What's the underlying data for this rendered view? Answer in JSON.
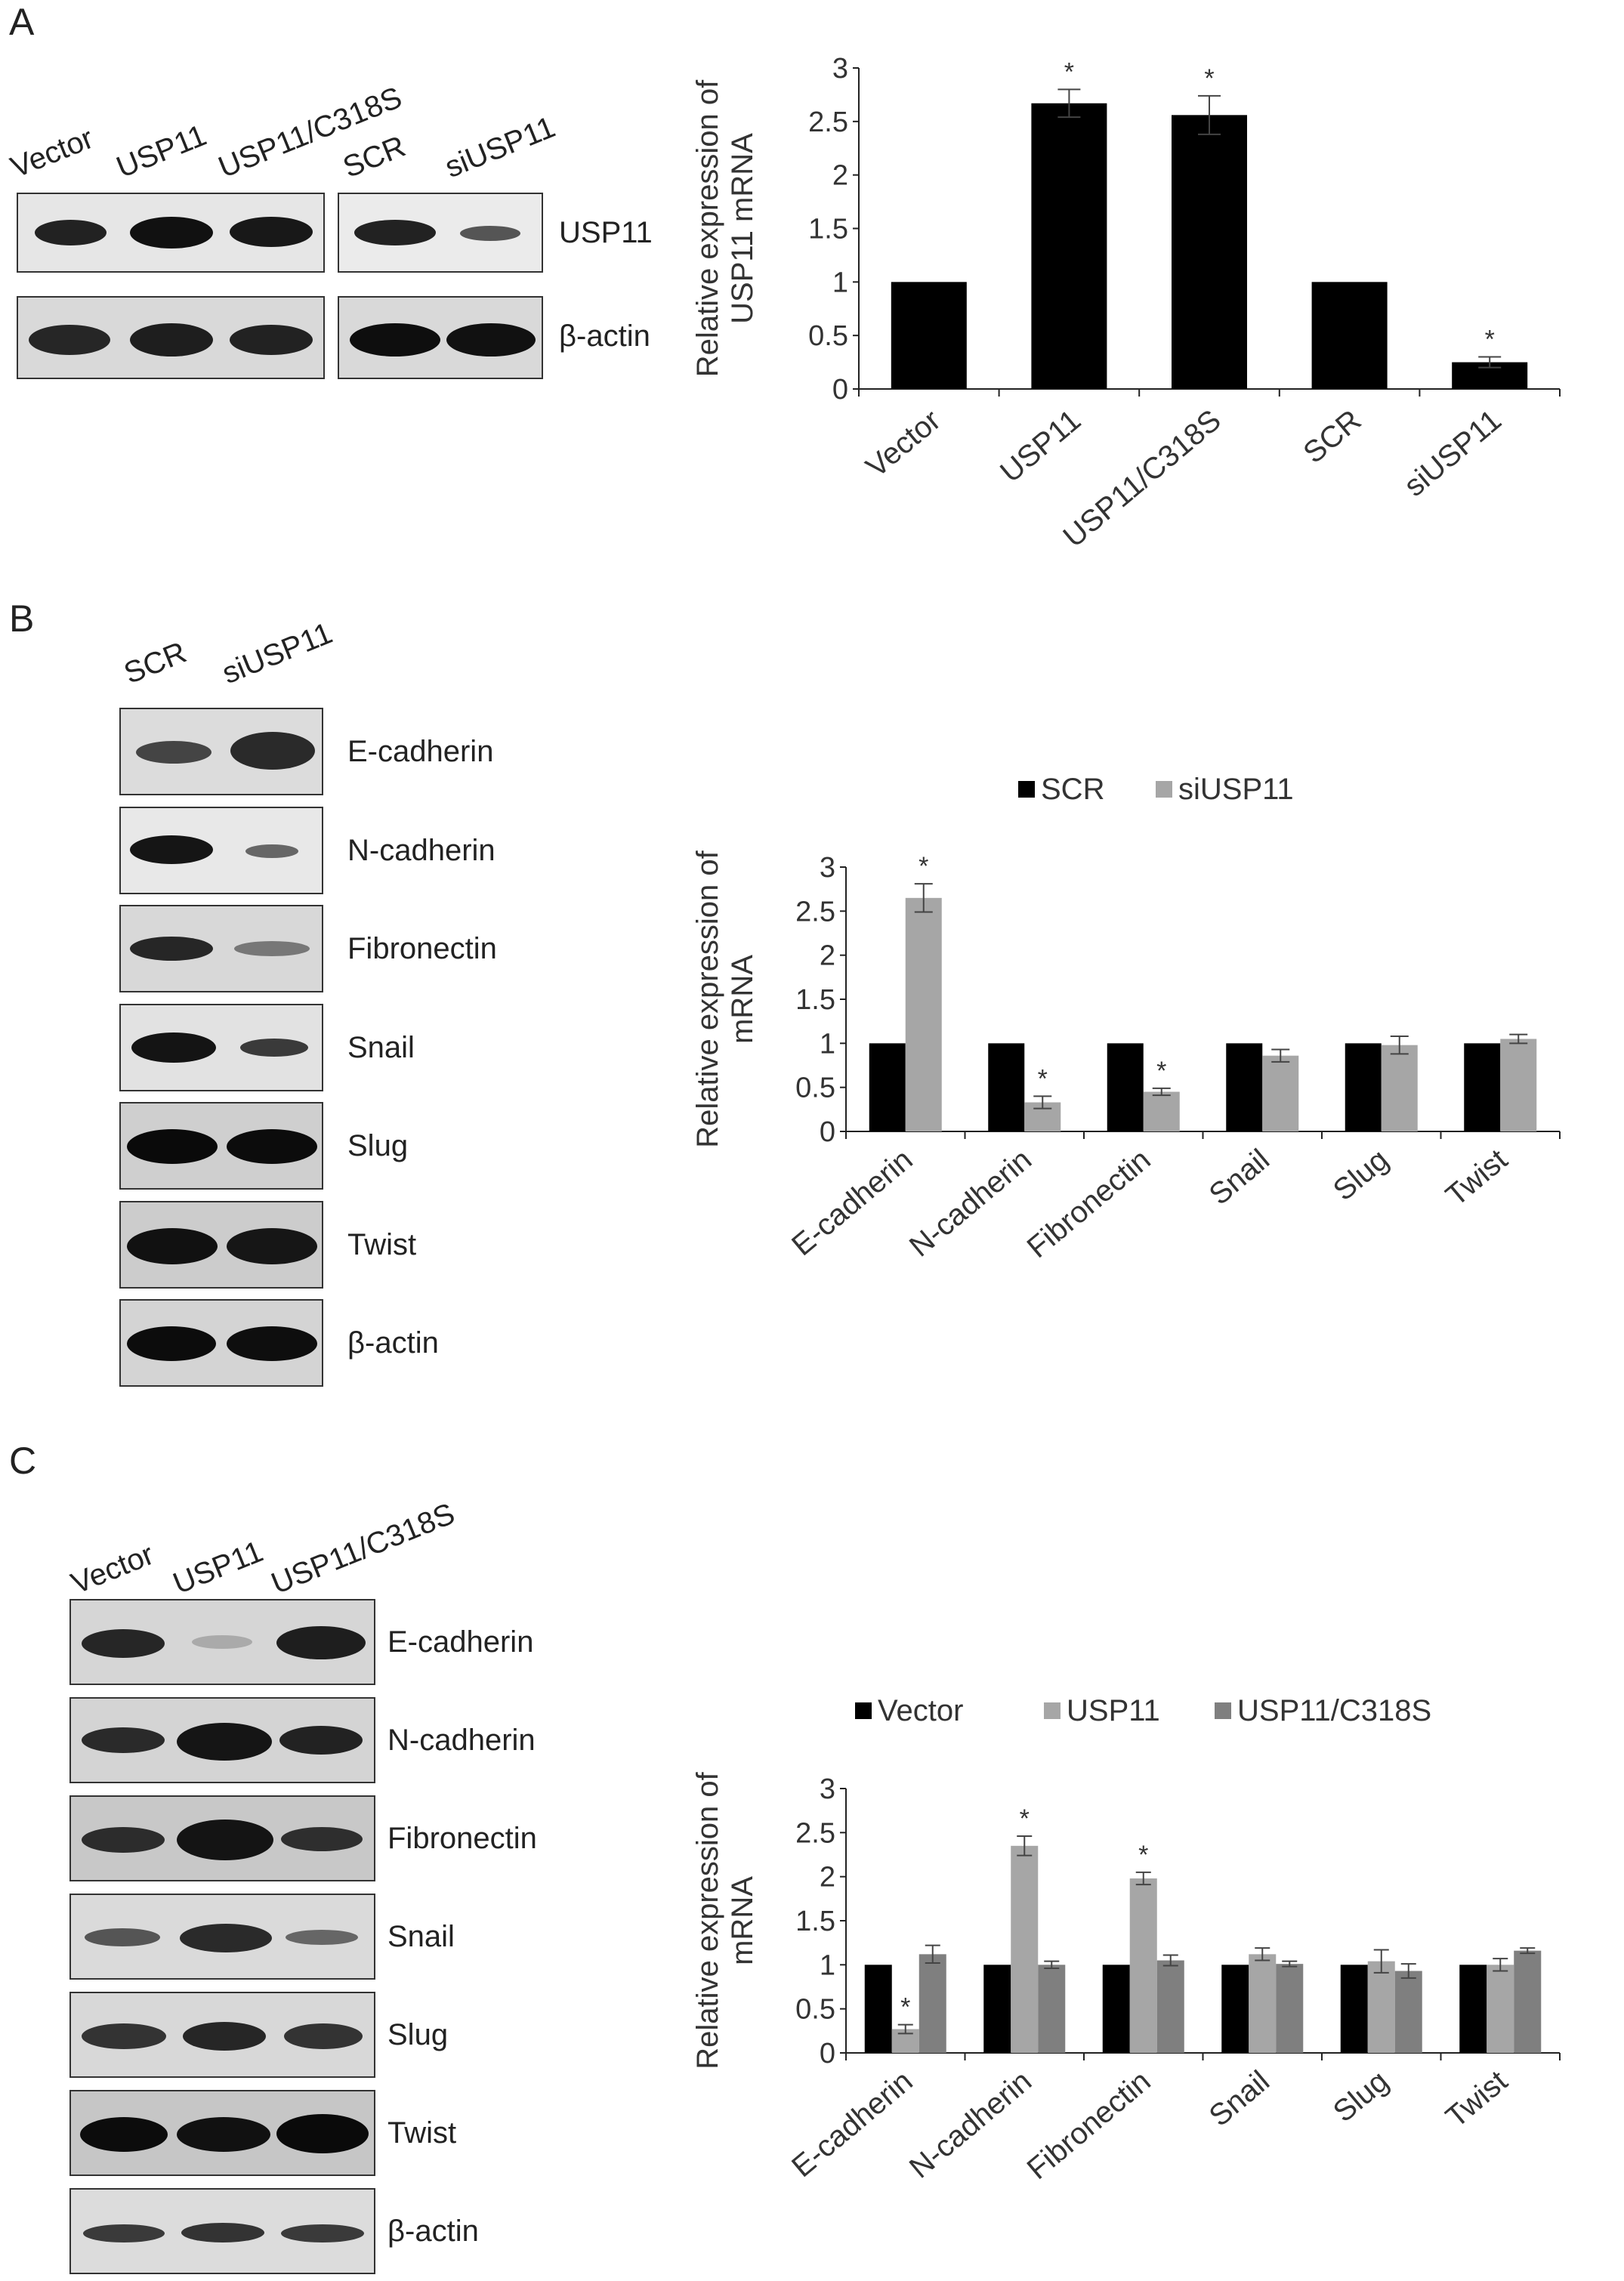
{
  "panels": {
    "a": {
      "letter": "A",
      "blot_lanes_left": [
        "Vector",
        "USP11",
        "USP11/C318S"
      ],
      "blot_lanes_right": [
        "SCR",
        "siUSP11"
      ],
      "blot_rows": [
        "USP11",
        "β-actin"
      ]
    },
    "b": {
      "letter": "B",
      "blot_lanes": [
        "SCR",
        "siUSP11"
      ],
      "blot_rows": [
        "E-cadherin",
        "N-cadherin",
        "Fibronectin",
        "Snail",
        "Slug",
        "Twist",
        "β-actin"
      ]
    },
    "c": {
      "letter": "C",
      "blot_lanes": [
        "Vector",
        "USP11",
        "USP11/C318S"
      ],
      "blot_rows": [
        "E-cadherin",
        "N-cadherin",
        "Fibronectin",
        "Snail",
        "Slug",
        "Twist",
        "β-actin"
      ]
    }
  },
  "chart_data": [
    {
      "type": "bar",
      "panel": "A",
      "ylabel": "Relative expression of USP11 mRNA",
      "ylabel_lines": [
        "Relative expression of",
        "USP11 mRNA"
      ],
      "ylim": [
        0,
        3
      ],
      "yticks": [
        "0",
        "0.5",
        "1",
        "1.5",
        "2",
        "2.5",
        "3"
      ],
      "categories": [
        "Vector",
        "USP11",
        "USP11/C318S",
        "SCR",
        "siUSP11"
      ],
      "series": [
        {
          "values": [
            1.0,
            2.67,
            2.56,
            1.0,
            0.25
          ],
          "errors": [
            0,
            0.13,
            0.18,
            0,
            0.05
          ],
          "significant": [
            false,
            true,
            true,
            false,
            true
          ],
          "color": "#000000"
        }
      ],
      "significance_mark": "*",
      "legend": "none",
      "grid": false
    },
    {
      "type": "bar",
      "panel": "B",
      "ylabel": "Relative expression of mRNA",
      "ylabel_lines": [
        "Relative expression of",
        "mRNA"
      ],
      "ylim": [
        0,
        3
      ],
      "yticks": [
        "0",
        "0.5",
        "1",
        "1.5",
        "2",
        "2.5",
        "3"
      ],
      "categories": [
        "E-cadherin",
        "N-cadherin",
        "Fibronectin",
        "Snail",
        "Slug",
        "Twist"
      ],
      "series": [
        {
          "name": "SCR",
          "color": "#000000",
          "values": [
            1.0,
            1.0,
            1.0,
            1.0,
            1.0,
            1.0
          ],
          "errors": [
            0,
            0,
            0,
            0,
            0,
            0
          ],
          "significant": [
            false,
            false,
            false,
            false,
            false,
            false
          ]
        },
        {
          "name": "siUSP11",
          "color": "#a6a6a6",
          "values": [
            2.65,
            0.33,
            0.45,
            0.86,
            0.98,
            1.05
          ],
          "errors": [
            0.16,
            0.07,
            0.04,
            0.07,
            0.1,
            0.05
          ],
          "significant": [
            true,
            true,
            true,
            false,
            false,
            false
          ]
        }
      ],
      "significance_mark": "*",
      "legend": "top",
      "grid": false
    },
    {
      "type": "bar",
      "panel": "C",
      "ylabel": "Relative expression of mRNA",
      "ylabel_lines": [
        "Relative expression of",
        "mRNA"
      ],
      "ylim": [
        0,
        3
      ],
      "yticks": [
        "0",
        "0.5",
        "1",
        "1.5",
        "2",
        "2.5",
        "3"
      ],
      "categories": [
        "E-cadherin",
        "N-cadherin",
        "Fibronectin",
        "Snail",
        "Slug",
        "Twist"
      ],
      "series": [
        {
          "name": "Vector",
          "color": "#000000",
          "values": [
            1.0,
            1.0,
            1.0,
            1.0,
            1.0,
            1.0
          ],
          "errors": [
            0,
            0,
            0,
            0,
            0,
            0
          ],
          "significant": [
            false,
            false,
            false,
            false,
            false,
            false
          ]
        },
        {
          "name": "USP11",
          "color": "#a6a6a6",
          "values": [
            0.27,
            2.35,
            1.98,
            1.12,
            1.04,
            1.0
          ],
          "errors": [
            0.05,
            0.11,
            0.07,
            0.07,
            0.13,
            0.07
          ],
          "significant": [
            true,
            true,
            true,
            false,
            false,
            false
          ]
        },
        {
          "name": "USP11/C318S",
          "color": "#7f7f7f",
          "values": [
            1.12,
            1.0,
            1.05,
            1.01,
            0.93,
            1.16
          ],
          "errors": [
            0.1,
            0.04,
            0.06,
            0.03,
            0.08,
            0.03
          ],
          "significant": [
            false,
            false,
            false,
            false,
            false,
            false
          ]
        }
      ],
      "significance_mark": "*",
      "legend": "top",
      "grid": false
    }
  ]
}
